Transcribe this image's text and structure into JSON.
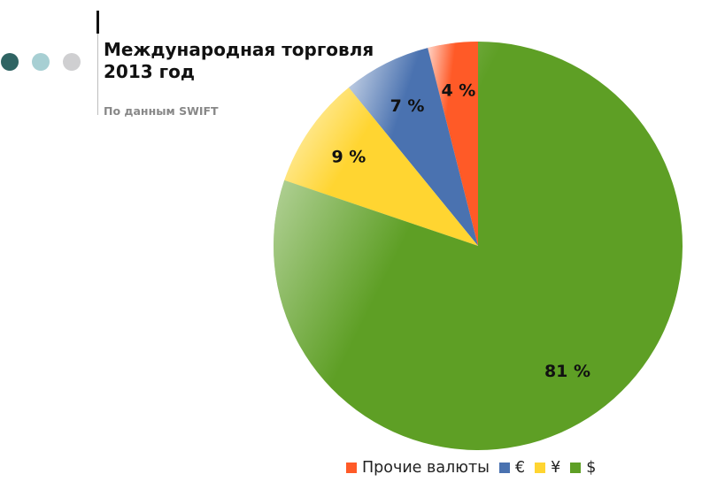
{
  "slide": {
    "title": "Международная торговля 2013 год",
    "subtitle": "По данным SWIFT"
  },
  "chart_data": {
    "type": "pie",
    "categories": [
      "Прочие валюты",
      "€",
      "¥",
      "$"
    ],
    "values": [
      4,
      7,
      9,
      81
    ],
    "labels": [
      "4 %",
      "7 %",
      "9 %",
      "81 %"
    ],
    "colors": [
      "#ff5a27",
      "#4a72b0",
      "#ffd531",
      "#5e9f25"
    ],
    "legend": "bottom"
  }
}
